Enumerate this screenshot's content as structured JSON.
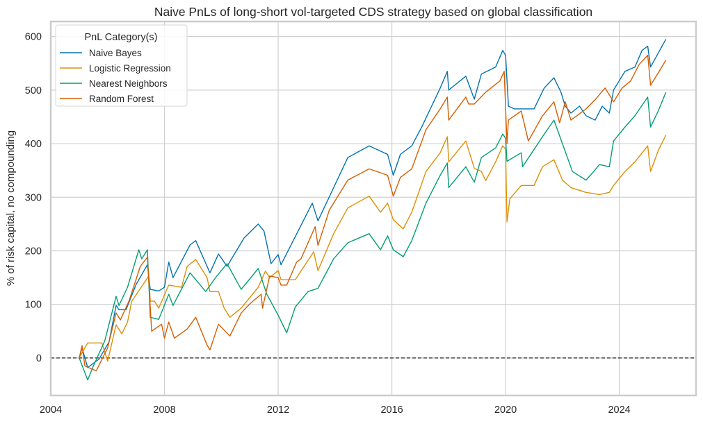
{
  "chart_data": {
    "type": "line",
    "title": "Naive PnLs of long-short vol-targeted CDS strategy based on global classification",
    "xlabel": "",
    "ylabel": "% of risk capital, no compounding",
    "xlim": [
      2004,
      2026.7
    ],
    "ylim": [
      -70,
      628
    ],
    "x_ticks": [
      "2004",
      "2008",
      "2012",
      "2016",
      "2020",
      "2024"
    ],
    "y_ticks": [
      "0",
      "100",
      "200",
      "300",
      "400",
      "500",
      "600"
    ],
    "grid": true,
    "zero_line": "dashed black",
    "legend": {
      "title": "PnL Category(s)",
      "placement": "top-left"
    },
    "series": [
      {
        "name": "Naive Bayes",
        "color": "#0173b2",
        "points": [
          [
            2005.0,
            0
          ],
          [
            2005.1,
            19
          ],
          [
            2005.3,
            -18
          ],
          [
            2005.7,
            -2
          ],
          [
            2006.05,
            30
          ],
          [
            2006.3,
            98
          ],
          [
            2006.4,
            90
          ],
          [
            2006.65,
            90
          ],
          [
            2007.0,
            137
          ],
          [
            2007.4,
            174
          ],
          [
            2007.5,
            128
          ],
          [
            2007.8,
            125
          ],
          [
            2008.0,
            132
          ],
          [
            2008.15,
            179
          ],
          [
            2008.3,
            150
          ],
          [
            2008.9,
            211
          ],
          [
            2009.1,
            219
          ],
          [
            2009.6,
            159
          ],
          [
            2009.9,
            194
          ],
          [
            2010.2,
            171
          ],
          [
            2010.8,
            224
          ],
          [
            2011.3,
            250
          ],
          [
            2011.5,
            237
          ],
          [
            2011.75,
            176
          ],
          [
            2012.0,
            193
          ],
          [
            2012.1,
            174
          ],
          [
            2013.2,
            289
          ],
          [
            2013.4,
            256
          ],
          [
            2014.45,
            374
          ],
          [
            2015.2,
            396
          ],
          [
            2015.85,
            380
          ],
          [
            2016.05,
            341
          ],
          [
            2016.3,
            380
          ],
          [
            2016.7,
            396
          ],
          [
            2017.05,
            431
          ],
          [
            2017.7,
            504
          ],
          [
            2017.95,
            535
          ],
          [
            2018.0,
            500
          ],
          [
            2018.6,
            526
          ],
          [
            2018.9,
            483
          ],
          [
            2019.15,
            530
          ],
          [
            2019.65,
            543
          ],
          [
            2019.9,
            574
          ],
          [
            2020.0,
            565
          ],
          [
            2020.1,
            470
          ],
          [
            2020.3,
            465
          ],
          [
            2021.0,
            465
          ],
          [
            2021.36,
            504
          ],
          [
            2021.7,
            523
          ],
          [
            2021.95,
            496
          ],
          [
            2022.1,
            470
          ],
          [
            2022.3,
            457
          ],
          [
            2022.6,
            470
          ],
          [
            2022.83,
            452
          ],
          [
            2023.15,
            444
          ],
          [
            2023.4,
            470
          ],
          [
            2023.65,
            457
          ],
          [
            2023.8,
            500
          ],
          [
            2024.2,
            535
          ],
          [
            2024.55,
            543
          ],
          [
            2024.8,
            574
          ],
          [
            2025.0,
            582
          ],
          [
            2025.1,
            543
          ],
          [
            2025.37,
            569
          ],
          [
            2025.64,
            595
          ]
        ]
      },
      {
        "name": "Logistic Regression",
        "color": "#de8f05",
        "points": [
          [
            2005.0,
            0
          ],
          [
            2005.3,
            28
          ],
          [
            2005.8,
            28
          ],
          [
            2006.0,
            -6
          ],
          [
            2006.3,
            62
          ],
          [
            2006.5,
            45
          ],
          [
            2006.7,
            67
          ],
          [
            2006.85,
            106
          ],
          [
            2007.45,
            153
          ],
          [
            2007.5,
            106
          ],
          [
            2007.65,
            106
          ],
          [
            2007.8,
            93
          ],
          [
            2008.15,
            136
          ],
          [
            2008.6,
            132
          ],
          [
            2008.8,
            171
          ],
          [
            2009.1,
            184
          ],
          [
            2009.5,
            150
          ],
          [
            2009.6,
            124
          ],
          [
            2009.9,
            124
          ],
          [
            2010.1,
            93
          ],
          [
            2010.3,
            76
          ],
          [
            2010.7,
            93
          ],
          [
            2011.3,
            132
          ],
          [
            2011.55,
            162
          ],
          [
            2011.7,
            150
          ],
          [
            2012.0,
            163
          ],
          [
            2012.1,
            146
          ],
          [
            2012.6,
            146
          ],
          [
            2013.25,
            198
          ],
          [
            2013.4,
            163
          ],
          [
            2013.95,
            232
          ],
          [
            2014.45,
            280
          ],
          [
            2015.2,
            302
          ],
          [
            2015.6,
            272
          ],
          [
            2015.85,
            289
          ],
          [
            2016.05,
            258
          ],
          [
            2016.4,
            241
          ],
          [
            2016.7,
            272
          ],
          [
            2017.2,
            348
          ],
          [
            2017.7,
            383
          ],
          [
            2017.95,
            413
          ],
          [
            2018.0,
            366
          ],
          [
            2018.6,
            405
          ],
          [
            2018.9,
            354
          ],
          [
            2019.15,
            348
          ],
          [
            2019.3,
            331
          ],
          [
            2019.65,
            366
          ],
          [
            2019.9,
            396
          ],
          [
            2020.0,
            390
          ],
          [
            2020.05,
            254
          ],
          [
            2020.15,
            297
          ],
          [
            2020.55,
            322
          ],
          [
            2021.0,
            322
          ],
          [
            2021.3,
            357
          ],
          [
            2021.7,
            370
          ],
          [
            2022.0,
            332
          ],
          [
            2022.3,
            318
          ],
          [
            2022.83,
            309
          ],
          [
            2023.3,
            305
          ],
          [
            2023.65,
            309
          ],
          [
            2023.8,
            322
          ],
          [
            2024.2,
            348
          ],
          [
            2024.55,
            366
          ],
          [
            2025.0,
            396
          ],
          [
            2025.1,
            348
          ],
          [
            2025.37,
            387
          ],
          [
            2025.64,
            416
          ]
        ]
      },
      {
        "name": "Nearest Neighbors",
        "color": "#029e73",
        "points": [
          [
            2005.0,
            0
          ],
          [
            2005.3,
            -41
          ],
          [
            2005.5,
            -15
          ],
          [
            2005.9,
            32
          ],
          [
            2006.3,
            115
          ],
          [
            2006.4,
            98
          ],
          [
            2006.7,
            132
          ],
          [
            2007.1,
            202
          ],
          [
            2007.2,
            185
          ],
          [
            2007.4,
            202
          ],
          [
            2007.5,
            76
          ],
          [
            2007.8,
            72
          ],
          [
            2008.15,
            119
          ],
          [
            2008.3,
            98
          ],
          [
            2008.9,
            159
          ],
          [
            2009.45,
            124
          ],
          [
            2009.8,
            150
          ],
          [
            2010.2,
            176
          ],
          [
            2010.7,
            128
          ],
          [
            2011.3,
            167
          ],
          [
            2011.6,
            119
          ],
          [
            2012.0,
            80
          ],
          [
            2012.3,
            47
          ],
          [
            2012.6,
            95
          ],
          [
            2013.05,
            124
          ],
          [
            2013.4,
            130
          ],
          [
            2013.95,
            185
          ],
          [
            2014.45,
            215
          ],
          [
            2015.2,
            232
          ],
          [
            2015.6,
            202
          ],
          [
            2015.85,
            228
          ],
          [
            2016.05,
            202
          ],
          [
            2016.4,
            189
          ],
          [
            2016.7,
            219
          ],
          [
            2017.2,
            289
          ],
          [
            2017.7,
            341
          ],
          [
            2017.95,
            364
          ],
          [
            2018.0,
            318
          ],
          [
            2018.6,
            357
          ],
          [
            2018.9,
            328
          ],
          [
            2019.15,
            374
          ],
          [
            2019.65,
            392
          ],
          [
            2019.9,
            418
          ],
          [
            2020.0,
            410
          ],
          [
            2020.05,
            367
          ],
          [
            2020.55,
            383
          ],
          [
            2020.6,
            357
          ],
          [
            2021.3,
            413
          ],
          [
            2021.7,
            444
          ],
          [
            2022.0,
            400
          ],
          [
            2022.35,
            348
          ],
          [
            2022.83,
            332
          ],
          [
            2023.1,
            348
          ],
          [
            2023.3,
            361
          ],
          [
            2023.65,
            357
          ],
          [
            2023.8,
            405
          ],
          [
            2024.2,
            431
          ],
          [
            2024.55,
            452
          ],
          [
            2025.0,
            487
          ],
          [
            2025.1,
            431
          ],
          [
            2025.37,
            461
          ],
          [
            2025.64,
            496
          ]
        ]
      },
      {
        "name": "Random Forest",
        "color": "#d55e00",
        "points": [
          [
            2005.0,
            0
          ],
          [
            2005.1,
            23
          ],
          [
            2005.2,
            -15
          ],
          [
            2005.6,
            -24
          ],
          [
            2006.0,
            19
          ],
          [
            2006.3,
            84
          ],
          [
            2006.45,
            71
          ],
          [
            2006.75,
            106
          ],
          [
            2007.15,
            171
          ],
          [
            2007.4,
            188
          ],
          [
            2007.55,
            50
          ],
          [
            2007.9,
            63
          ],
          [
            2008.0,
            37
          ],
          [
            2008.15,
            67
          ],
          [
            2008.35,
            37
          ],
          [
            2008.8,
            54
          ],
          [
            2009.1,
            76
          ],
          [
            2009.5,
            24
          ],
          [
            2009.6,
            15
          ],
          [
            2009.9,
            63
          ],
          [
            2010.3,
            41
          ],
          [
            2010.7,
            84
          ],
          [
            2011.0,
            101
          ],
          [
            2011.4,
            119
          ],
          [
            2011.45,
            93
          ],
          [
            2011.7,
            153
          ],
          [
            2012.0,
            150
          ],
          [
            2012.1,
            136
          ],
          [
            2012.3,
            136
          ],
          [
            2012.65,
            179
          ],
          [
            2012.8,
            185
          ],
          [
            2013.3,
            245
          ],
          [
            2013.4,
            210
          ],
          [
            2013.8,
            276
          ],
          [
            2014.45,
            332
          ],
          [
            2015.2,
            353
          ],
          [
            2015.85,
            341
          ],
          [
            2016.05,
            302
          ],
          [
            2016.3,
            337
          ],
          [
            2016.7,
            353
          ],
          [
            2017.2,
            426
          ],
          [
            2017.7,
            465
          ],
          [
            2017.95,
            487
          ],
          [
            2018.0,
            444
          ],
          [
            2018.6,
            487
          ],
          [
            2018.7,
            474
          ],
          [
            2018.9,
            474
          ],
          [
            2019.3,
            496
          ],
          [
            2019.8,
            517
          ],
          [
            2019.95,
            535
          ],
          [
            2020.05,
            400
          ],
          [
            2020.1,
            444
          ],
          [
            2020.55,
            461
          ],
          [
            2020.8,
            405
          ],
          [
            2021.3,
            452
          ],
          [
            2021.7,
            478
          ],
          [
            2021.9,
            439
          ],
          [
            2022.1,
            478
          ],
          [
            2022.3,
            444
          ],
          [
            2022.83,
            465
          ],
          [
            2023.15,
            482
          ],
          [
            2023.5,
            504
          ],
          [
            2023.8,
            478
          ],
          [
            2024.1,
            504
          ],
          [
            2024.4,
            517
          ],
          [
            2024.7,
            548
          ],
          [
            2025.0,
            565
          ],
          [
            2025.1,
            509
          ],
          [
            2025.37,
            532
          ],
          [
            2025.64,
            556
          ]
        ]
      }
    ]
  }
}
